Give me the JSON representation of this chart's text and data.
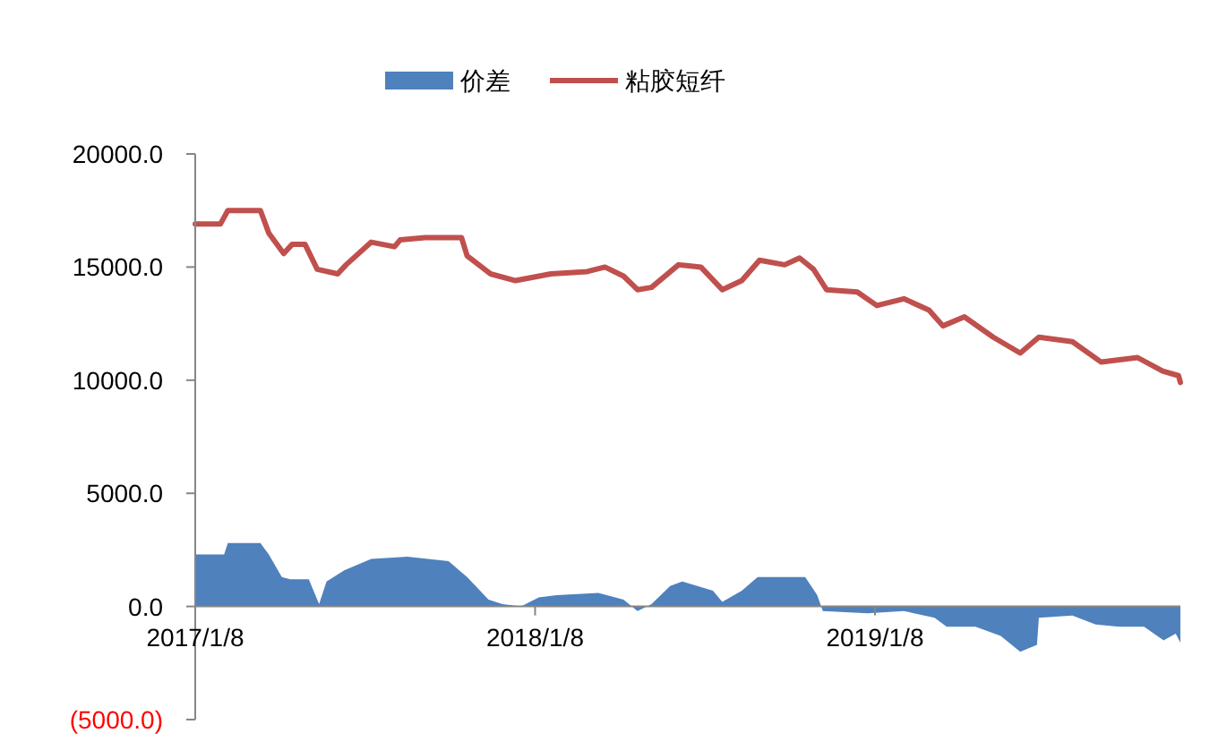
{
  "chart_data": {
    "type": "line",
    "legend": "top",
    "grid": false,
    "marker": "none",
    "line_style": "solid",
    "xlim": [
      "2017-01-08",
      "2019-12-02"
    ],
    "xticks": [
      {
        "value": "2017-01-08",
        "label": "2017/1/8"
      },
      {
        "value": "2018-01-08",
        "label": "2018/1/8"
      },
      {
        "value": "2019-01-08",
        "label": "2019/1/8"
      }
    ],
    "ylim": [
      -5000,
      20000
    ],
    "yticks": [
      {
        "value": -5000,
        "label": "(5000.0)"
      },
      {
        "value": 0,
        "label": "0.0"
      },
      {
        "value": 5000,
        "label": "5000.0"
      },
      {
        "value": 10000,
        "label": "10000.0"
      },
      {
        "value": 15000,
        "label": "15000.0"
      },
      {
        "value": 20000,
        "label": "20000.0"
      }
    ],
    "series": [
      {
        "name": "价差",
        "type": "area",
        "color": "#4f81bd",
        "x": [
          "2017-01-08",
          "2017-02-08",
          "2017-02-12",
          "2017-03-19",
          "2017-03-28",
          "2017-04-11",
          "2017-04-20",
          "2017-05-10",
          "2017-05-21",
          "2017-05-29",
          "2017-06-17",
          "2017-07-16",
          "2017-08-24",
          "2017-10-07",
          "2017-10-27",
          "2017-11-19",
          "2017-12-04",
          "2017-12-24",
          "2018-01-12",
          "2018-01-31",
          "2018-03-17",
          "2018-04-13",
          "2018-04-28",
          "2018-05-13",
          "2018-06-02",
          "2018-06-15",
          "2018-07-18",
          "2018-07-28",
          "2018-08-18",
          "2018-09-04",
          "2018-10-25",
          "2018-11-07",
          "2018-11-13",
          "2018-12-31",
          "2019-02-08",
          "2019-03-13",
          "2019-03-26",
          "2019-04-26",
          "2019-05-23",
          "2019-06-13",
          "2019-07-01",
          "2019-07-03",
          "2019-08-08",
          "2019-09-02",
          "2019-09-27",
          "2019-10-24",
          "2019-11-14",
          "2019-11-27",
          "2019-12-02"
        ],
        "values": [
          2300,
          2300,
          2800,
          2800,
          2300,
          1300,
          1200,
          1200,
          100,
          1100,
          1600,
          2100,
          2200,
          2000,
          1300,
          300,
          100,
          0,
          400,
          500,
          600,
          300,
          -200,
          100,
          900,
          1100,
          700,
          200,
          700,
          1300,
          1300,
          500,
          -200,
          -300,
          -200,
          -500,
          -900,
          -900,
          -1300,
          -2000,
          -1700,
          -500,
          -400,
          -800,
          -900,
          -900,
          -1500,
          -1200,
          -1600
        ]
      },
      {
        "name": "粘胶短纤",
        "color": "#c0504d",
        "x": [
          "2017-01-08",
          "2017-02-04",
          "2017-02-12",
          "2017-03-19",
          "2017-03-28",
          "2017-04-13",
          "2017-04-22",
          "2017-05-06",
          "2017-05-19",
          "2017-06-10",
          "2017-06-19",
          "2017-07-16",
          "2017-08-10",
          "2017-08-16",
          "2017-09-12",
          "2017-10-21",
          "2017-10-27",
          "2017-11-21",
          "2017-12-18",
          "2018-01-25",
          "2018-03-05",
          "2018-03-24",
          "2018-04-13",
          "2018-04-28",
          "2018-05-13",
          "2018-06-11",
          "2018-07-05",
          "2018-07-28",
          "2018-08-18",
          "2018-09-06",
          "2018-10-03",
          "2018-10-19",
          "2018-11-03",
          "2018-11-17",
          "2018-12-20",
          "2019-01-10",
          "2019-02-08",
          "2019-03-07",
          "2019-03-22",
          "2019-04-14",
          "2019-05-15",
          "2019-06-13",
          "2019-07-03",
          "2019-08-08",
          "2019-09-08",
          "2019-10-17",
          "2019-11-13",
          "2019-11-30",
          "2019-12-02"
        ],
        "values": [
          16900,
          16900,
          17500,
          17500,
          16500,
          15600,
          16000,
          16000,
          14900,
          14700,
          15100,
          16100,
          15900,
          16200,
          16300,
          16300,
          15500,
          14700,
          14400,
          14700,
          14800,
          15000,
          14600,
          14000,
          14100,
          15100,
          15000,
          14000,
          14400,
          15300,
          15100,
          15400,
          14900,
          14000,
          13900,
          13300,
          13600,
          13100,
          12400,
          12800,
          11900,
          11200,
          11900,
          11700,
          10800,
          11000,
          10400,
          10200,
          9900
        ]
      }
    ]
  }
}
